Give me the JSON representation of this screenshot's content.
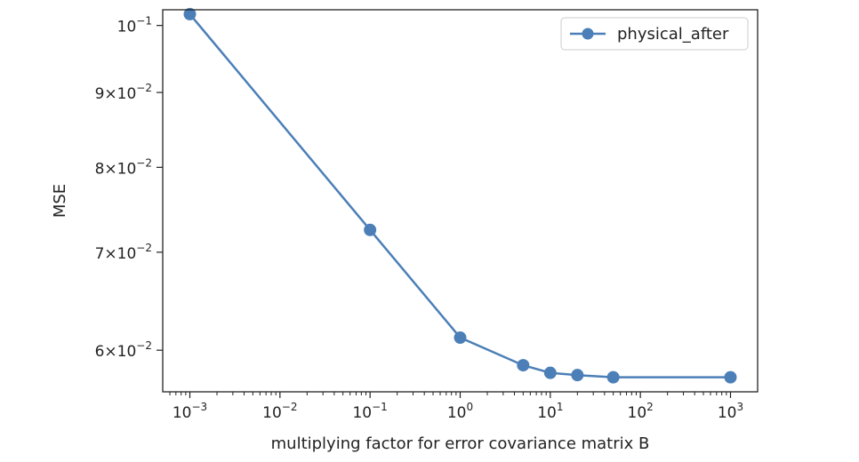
{
  "chart_data": {
    "type": "line",
    "xlabel": "multiplying factor for error covariance matrix B",
    "ylabel": "MSE",
    "x_scale": "log",
    "y_scale": "log",
    "xlim": [
      0.0005,
      2000
    ],
    "ylim": [
      0.0562,
      0.1025
    ],
    "grid": false,
    "legend_position": "top-right",
    "x_ticks": [
      {
        "value": 0.001,
        "base": "10",
        "exp": "−3"
      },
      {
        "value": 0.01,
        "base": "10",
        "exp": "−2"
      },
      {
        "value": 0.1,
        "base": "10",
        "exp": "−1"
      },
      {
        "value": 1,
        "base": "10",
        "exp": "0"
      },
      {
        "value": 10,
        "base": "10",
        "exp": "1"
      },
      {
        "value": 100,
        "base": "10",
        "exp": "2"
      },
      {
        "value": 1000,
        "base": "10",
        "exp": "3"
      }
    ],
    "y_ticks": [
      {
        "value": 0.1,
        "base": "10",
        "exp": "−1"
      },
      {
        "value": 0.09,
        "base": "9×10",
        "exp": "−2"
      },
      {
        "value": 0.08,
        "base": "8×10",
        "exp": "−2"
      },
      {
        "value": 0.07,
        "base": "7×10",
        "exp": "−2"
      },
      {
        "value": 0.06,
        "base": "6×10",
        "exp": "−2"
      }
    ],
    "series": [
      {
        "name": "physical_after",
        "color": "#4c7fb7",
        "marker": "circle",
        "x": [
          0.001,
          0.1,
          1,
          5,
          10,
          20,
          50,
          1000
        ],
        "y": [
          0.1018,
          0.0725,
          0.0612,
          0.0586,
          0.0579,
          0.0577,
          0.0575,
          0.0575
        ]
      }
    ]
  }
}
